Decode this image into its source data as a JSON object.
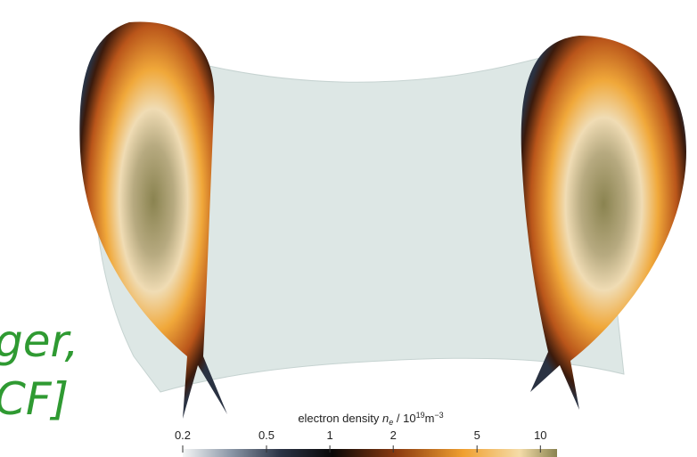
{
  "text_fragments": [
    "ger,",
    "CF]"
  ],
  "colorbar": {
    "label": {
      "text": "electron density",
      "symbol": "n",
      "subscript": "e",
      "unit_base": "/ 10",
      "exponent": "19",
      "unit": "m",
      "unit_exponent": "−3"
    },
    "scale": "log",
    "lim": [
      0.2,
      12
    ],
    "ticks": [
      0.2,
      0.5,
      1,
      2,
      5,
      10
    ]
  }
}
